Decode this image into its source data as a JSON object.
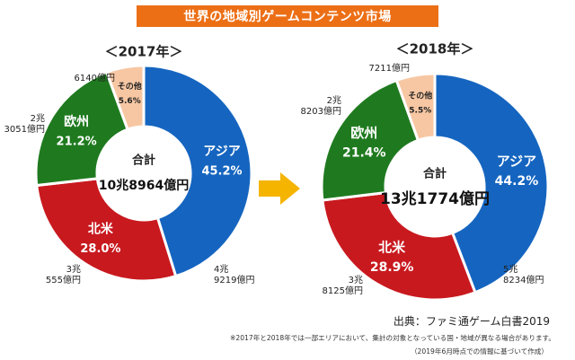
{
  "header": {
    "title": "世界の地域別ゲームコンテンツ市場"
  },
  "chart_data": [
    {
      "type": "pie",
      "title": "＜2017年＞",
      "total_label": "合計",
      "total_value": "10兆8964億円",
      "slices": [
        {
          "name": "アジア",
          "percent": 45.2,
          "pct_label": "45.2%",
          "amount": [
            "4兆",
            "9219億円"
          ],
          "color": "#1565c0"
        },
        {
          "name": "北米",
          "percent": 28.0,
          "pct_label": "28.0%",
          "amount": [
            "3兆",
            "555億円"
          ],
          "color": "#c8191f"
        },
        {
          "name": "欧州",
          "percent": 21.2,
          "pct_label": "21.2%",
          "amount": [
            "2兆",
            "3051億円"
          ],
          "color": "#1f7a1f"
        },
        {
          "name": "その他",
          "percent": 5.6,
          "pct_label": "5.6%",
          "amount": [
            "6140億円"
          ],
          "color": "#f7c7a3"
        }
      ]
    },
    {
      "type": "pie",
      "title": "＜2018年＞",
      "total_label": "合計",
      "total_value": "13兆1774億円",
      "slices": [
        {
          "name": "アジア",
          "percent": 44.2,
          "pct_label": "44.2%",
          "amount": [
            "5兆",
            "8234億円"
          ],
          "color": "#1565c0"
        },
        {
          "name": "北米",
          "percent": 28.9,
          "pct_label": "28.9%",
          "amount": [
            "3兆",
            "8125億円"
          ],
          "color": "#c8191f"
        },
        {
          "name": "欧州",
          "percent": 21.4,
          "pct_label": "21.4%",
          "amount": [
            "2兆",
            "8203億円"
          ],
          "color": "#1f7a1f"
        },
        {
          "name": "その他",
          "percent": 5.5,
          "pct_label": "5.5%",
          "amount": [
            "7211億円"
          ],
          "color": "#f7c7a3"
        }
      ]
    }
  ],
  "arrow_color": "#f5b400",
  "footer": {
    "source": "出典：ファミ通ゲーム白書2019",
    "note": "※2017年と2018年では一部エリアにおいて、集計の対象となっている国・地域が異なる場合があります。",
    "date": "（2019年6月時点での情報に基づいて作成）"
  }
}
